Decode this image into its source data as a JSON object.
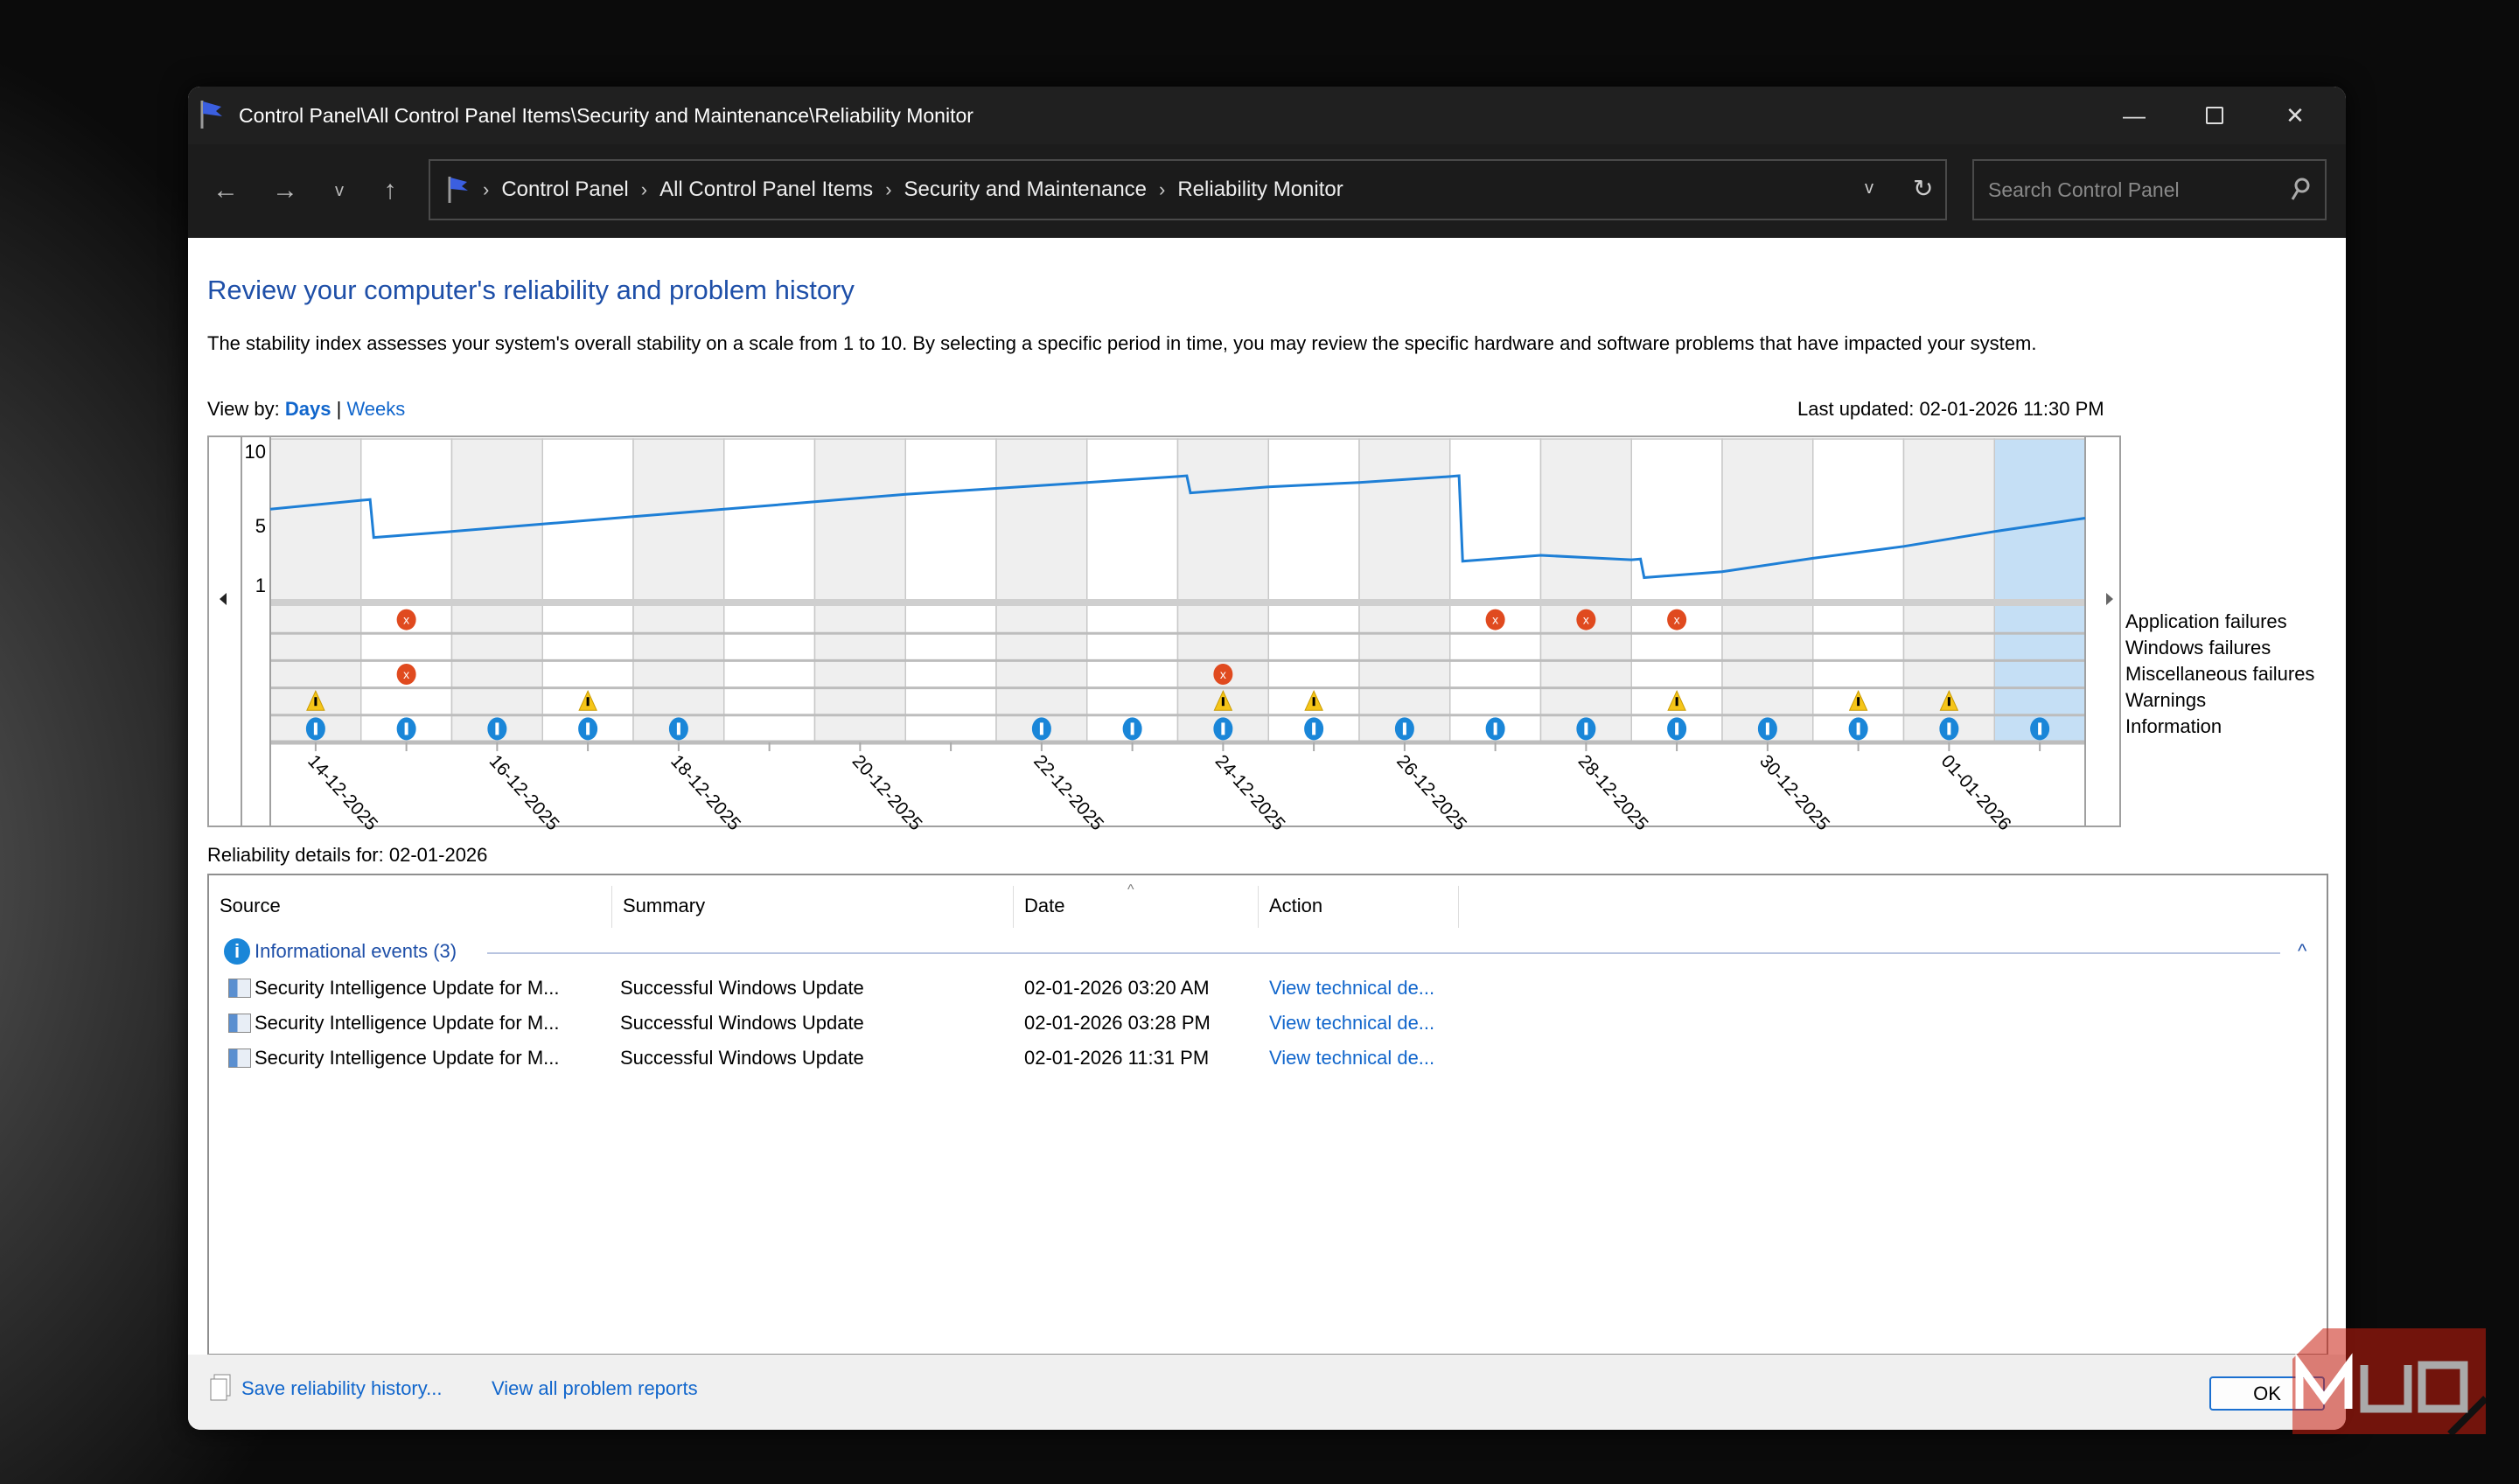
{
  "window": {
    "title": "Control Panel\\All Control Panel Items\\Security and Maintenance\\Reliability Monitor"
  },
  "nav": {
    "breadcrumb": [
      "Control Panel",
      "All Control Panel Items",
      "Security and Maintenance",
      "Reliability Monitor"
    ],
    "search_placeholder": "Search Control Panel"
  },
  "page": {
    "heading": "Review your computer's reliability and problem history",
    "description": "The stability index assesses your system's overall stability on a scale from 1 to 10. By selecting a specific period in time, you may review the specific hardware and software problems that have impacted your system.",
    "view_by_label": "View by:",
    "view_days": "Days",
    "view_sep": "|",
    "view_weeks": "Weeks",
    "last_updated": "Last updated: 02-01-2026 11:30 PM",
    "details_for": "Reliability details for: 02-01-2026"
  },
  "chart_data": {
    "type": "line",
    "y_ticks": [
      "10",
      "5",
      "1"
    ],
    "ylim": [
      1,
      10
    ],
    "days": [
      "14-12-2025",
      "15-12-2025",
      "16-12-2025",
      "17-12-2025",
      "18-12-2025",
      "19-12-2025",
      "20-12-2025",
      "21-12-2025",
      "22-12-2025",
      "23-12-2025",
      "24-12-2025",
      "25-12-2025",
      "26-12-2025",
      "27-12-2025",
      "28-12-2025",
      "29-12-2025",
      "30-12-2025",
      "31-12-2025",
      "01-01-2026",
      "02-01-2026"
    ],
    "tick_labels": [
      "14-12-2025",
      "16-12-2025",
      "18-12-2025",
      "20-12-2025",
      "22-12-2025",
      "24-12-2025",
      "26-12-2025",
      "28-12-2025",
      "30-12-2025",
      "01-01-2026"
    ],
    "stability_start": 6.1,
    "stability_index": [
      6.7,
      4.6,
      5.1,
      5.6,
      6.1,
      6.6,
      7.1,
      7.5,
      7.9,
      8.3,
      7.6,
      7.9,
      8.3,
      3.0,
      2.7,
      1.9,
      2.8,
      3.6,
      4.6,
      5.5
    ],
    "selected_day": "02-01-2026",
    "legend": [
      "Application failures",
      "Windows failures",
      "Miscellaneous failures",
      "Warnings",
      "Information"
    ],
    "events": {
      "Application failures": [
        "15-12-2025",
        "27-12-2025",
        "28-12-2025",
        "29-12-2025"
      ],
      "Windows failures": [],
      "Miscellaneous failures": [
        "15-12-2025",
        "24-12-2025"
      ],
      "Warnings": [
        "14-12-2025",
        "17-12-2025",
        "24-12-2025",
        "25-12-2025",
        "29-12-2025",
        "31-12-2025",
        "01-01-2026"
      ],
      "Information": [
        "14-12-2025",
        "15-12-2025",
        "16-12-2025",
        "17-12-2025",
        "18-12-2025",
        "22-12-2025",
        "23-12-2025",
        "24-12-2025",
        "25-12-2025",
        "26-12-2025",
        "27-12-2025",
        "28-12-2025",
        "29-12-2025",
        "30-12-2025",
        "31-12-2025",
        "01-01-2026",
        "02-01-2026"
      ]
    },
    "colors": {
      "line": "#1e7fd6",
      "selected": "#c5dff5",
      "error": "#e04a1f",
      "warning": "#f5c518",
      "info": "#1a86d8"
    }
  },
  "table": {
    "columns": [
      "Source",
      "Summary",
      "Date",
      "Action"
    ],
    "group": "Informational events (3)",
    "rows": [
      {
        "source": "Security Intelligence Update for M...",
        "summary": "Successful Windows Update",
        "date": "02-01-2026 03:20 AM",
        "action": "View technical de..."
      },
      {
        "source": "Security Intelligence Update for M...",
        "summary": "Successful Windows Update",
        "date": "02-01-2026 03:28 PM",
        "action": "View technical de..."
      },
      {
        "source": "Security Intelligence Update for M...",
        "summary": "Successful Windows Update",
        "date": "02-01-2026 11:31 PM",
        "action": "View technical de..."
      }
    ]
  },
  "footer": {
    "save": "Save reliability history...",
    "view_all": "View all problem reports",
    "ok": "OK"
  },
  "watermark": "MUO"
}
